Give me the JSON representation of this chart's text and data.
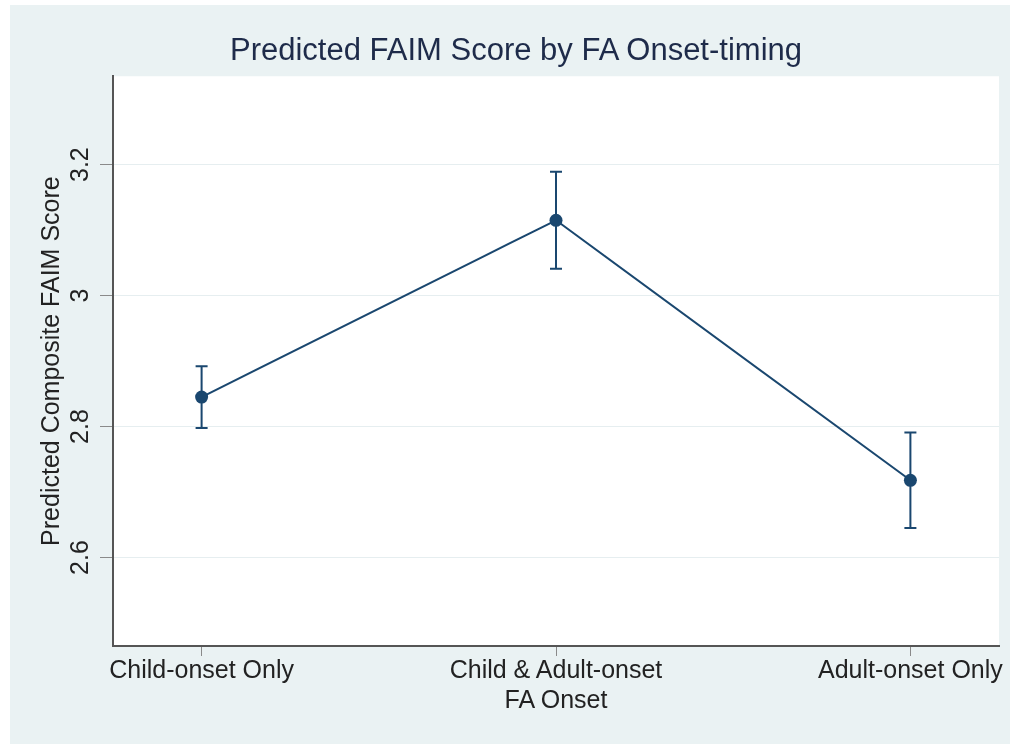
{
  "chart_data": {
    "type": "line",
    "title": "Predicted FAIM Score by FA Onset-timing",
    "xlabel": "FA Onset",
    "ylabel": "Predicted Composite FAIM Score",
    "categories": [
      "Child-onset Only",
      "Child & Adult-onset",
      "Adult-onset Only"
    ],
    "series": [
      {
        "color": "#1a476f",
        "values": [
          2.845,
          3.115,
          2.718
        ],
        "errors": [
          0.047,
          0.074,
          0.073
        ]
      }
    ],
    "ylim": [
      2.465,
      3.335
    ],
    "yticks": [
      2.6,
      2.8,
      3,
      3.2
    ],
    "grid": "y",
    "marker": "circle",
    "line_style": "solid"
  }
}
